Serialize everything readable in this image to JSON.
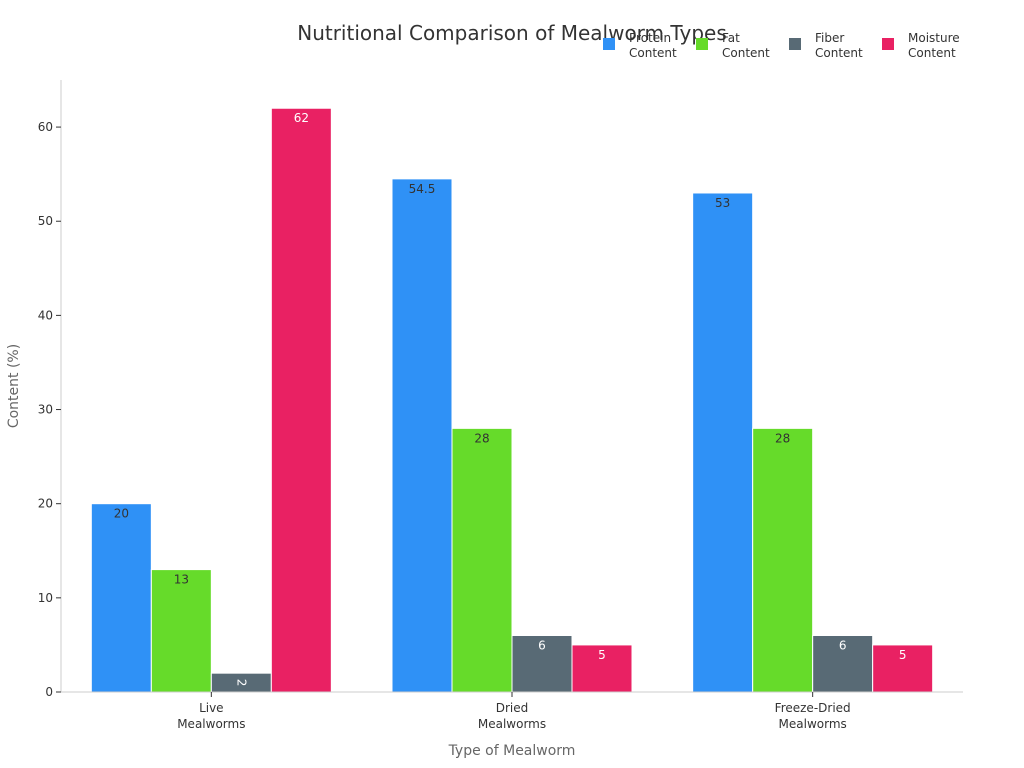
{
  "chart_data": {
    "type": "bar",
    "title": "Nutritional Comparison of Mealworm Types",
    "xlabel": "Type of Mealworm",
    "ylabel": "Content (%)",
    "categories": [
      [
        "Live",
        "Mealworms"
      ],
      [
        "Dried",
        "Mealworms"
      ],
      [
        "Freeze-Dried",
        "Mealworms"
      ]
    ],
    "ylim": [
      0,
      65
    ],
    "yticks": [
      0,
      10,
      20,
      30,
      40,
      50,
      60
    ],
    "grid": false,
    "legend_position": "top-right",
    "series": [
      {
        "name": [
          "Protein",
          "Content"
        ],
        "values": [
          20,
          54.5,
          53
        ],
        "color": "#2f91f6",
        "label_color": "#333333"
      },
      {
        "name": [
          "Fat",
          "Content"
        ],
        "values": [
          13,
          28,
          28
        ],
        "color": "#66db2a",
        "label_color": "#333333"
      },
      {
        "name": [
          "Fiber",
          "Content"
        ],
        "values": [
          2,
          6,
          6
        ],
        "color": "#586a75",
        "label_color": "#ffffff"
      },
      {
        "name": [
          "Moisture",
          "Content"
        ],
        "values": [
          62,
          5,
          5
        ],
        "color": "#e92163",
        "label_color": "#ffffff"
      }
    ],
    "data_labels": [
      [
        "20",
        "54.5",
        "53"
      ],
      [
        "13",
        "28",
        "28"
      ],
      [
        "2",
        "6",
        "6"
      ],
      [
        "62",
        "5",
        "5"
      ]
    ]
  }
}
